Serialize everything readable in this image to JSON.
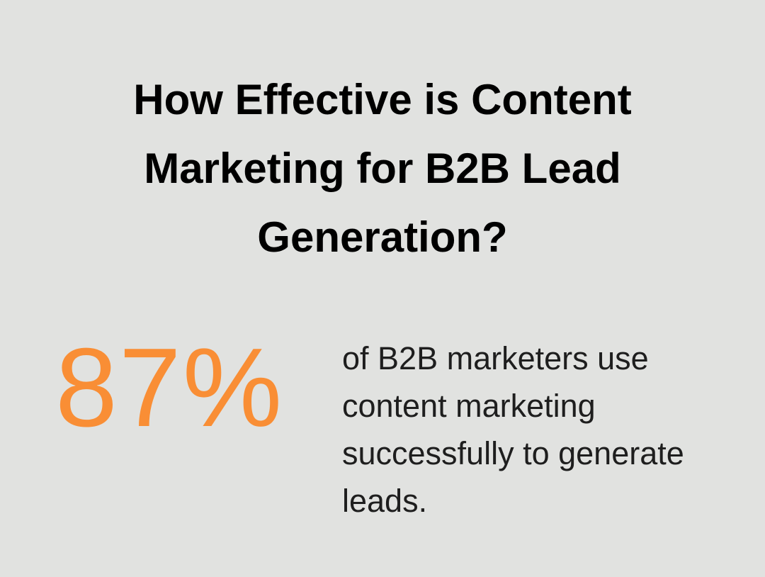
{
  "title": "How Effective is Content Marketing for B2B Lead Generation?",
  "stat": {
    "value": "87%",
    "description": "of B2B marketers use content marketing successfully to generate leads."
  }
}
